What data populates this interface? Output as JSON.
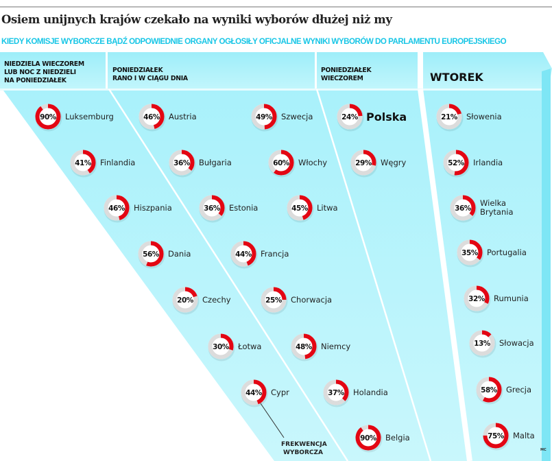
{
  "title": "Osiem unijnych krajów czekało na wyniki wyborów dłużej niż my",
  "subtitle": "KIEDY KOMISJE WYBORCZE BĄDŹ ODPOWIEDNIE ORGANY OGŁOSIŁY OFICJALNE WYNIKI WYBORÓW DO PARLAMENTU EUROPEJSKIEGO",
  "annotation": [
    "FREKWENCJA",
    "WYBORCZA"
  ],
  "credit": "MC",
  "colors": {
    "turnout": "#e30613",
    "ring_bg": "#dcdcdc",
    "panel": "#b0f2fb",
    "subtitle": "#18c6e6"
  },
  "chart_data": {
    "type": "donut-grid",
    "value_unit": "%",
    "groups": [
      {
        "header": [
          "NIEDZIELA WIECZOREM",
          "LUB NOC Z NIEDZIELI",
          "NA PONIEDZIAŁEK"
        ],
        "items": [
          {
            "country": "Luksemburg",
            "turnout": 90
          },
          {
            "country": "Finlandia",
            "turnout": 41
          },
          {
            "country": "Hiszpania",
            "turnout": 46
          },
          {
            "country": "Dania",
            "turnout": 56
          },
          {
            "country": "Czechy",
            "turnout": 20
          },
          {
            "country": "Łotwa",
            "turnout": 30
          },
          {
            "country": "Cypr",
            "turnout": 44
          }
        ]
      },
      {
        "header": [
          "PONIEDZIAŁEK",
          "RANO I W CIĄGU DNIA"
        ],
        "items": [
          {
            "country": "Austria",
            "turnout": 46
          },
          {
            "country": "Bułgaria",
            "turnout": 36
          },
          {
            "country": "Estonia",
            "turnout": 36
          },
          {
            "country": "Francja",
            "turnout": 44
          },
          {
            "country": "Chorwacja",
            "turnout": 25
          },
          {
            "country": "Niemcy",
            "turnout": 48
          },
          {
            "country": "Holandia",
            "turnout": 37
          },
          {
            "country": "Belgia",
            "turnout": 90
          },
          {
            "country": "Szwecja",
            "turnout": 49
          },
          {
            "country": "Włochy",
            "turnout": 60
          },
          {
            "country": "Litwa",
            "turnout": 45
          }
        ]
      },
      {
        "header": [
          "PONIEDZIAŁEK",
          "WIECZOREM"
        ],
        "items": [
          {
            "country": "Polska",
            "turnout": 24,
            "highlight": true
          },
          {
            "country": "Węgry",
            "turnout": 29
          }
        ]
      },
      {
        "header": [
          "WTOREK"
        ],
        "items": [
          {
            "country": "Słowenia",
            "turnout": 21
          },
          {
            "country": "Irlandia",
            "turnout": 52
          },
          {
            "country": "Wielka Brytania",
            "turnout": 36
          },
          {
            "country": "Portugalia",
            "turnout": 35
          },
          {
            "country": "Rumunia",
            "turnout": 32
          },
          {
            "country": "Słowacja",
            "turnout": 13
          },
          {
            "country": "Grecja",
            "turnout": 58
          },
          {
            "country": "Malta",
            "turnout": 75
          }
        ]
      }
    ]
  }
}
